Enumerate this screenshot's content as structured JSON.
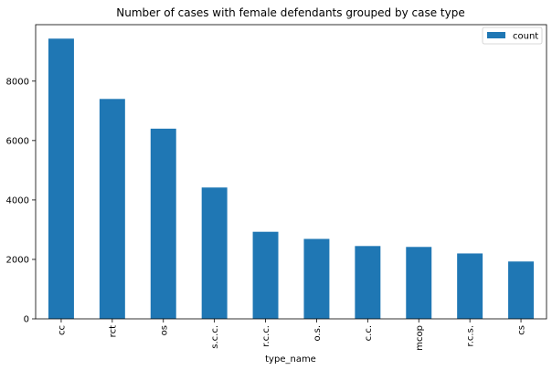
{
  "chart_data": {
    "type": "bar",
    "title": "Number of cases with female defendants grouped by case type",
    "xlabel": "type_name",
    "ylabel": "",
    "categories": [
      "cc",
      "rct",
      "os",
      "s.c.c.",
      "r.c.c.",
      "o.s.",
      "c.c.",
      "mcop",
      "r.c.s.",
      "cs"
    ],
    "series": [
      {
        "name": "count",
        "values": [
          9430,
          7400,
          6400,
          4420,
          2930,
          2690,
          2450,
          2420,
          2200,
          1930
        ],
        "color": "#1f77b4"
      }
    ],
    "ylim": [
      0,
      9900
    ],
    "yticks": [
      0,
      2000,
      4000,
      6000,
      8000
    ],
    "ytick_labels": [
      "0",
      "2000",
      "4000",
      "6000",
      "8000"
    ],
    "grid": false,
    "legend_position": "top-right",
    "x_tick_rotation": "vertical"
  }
}
